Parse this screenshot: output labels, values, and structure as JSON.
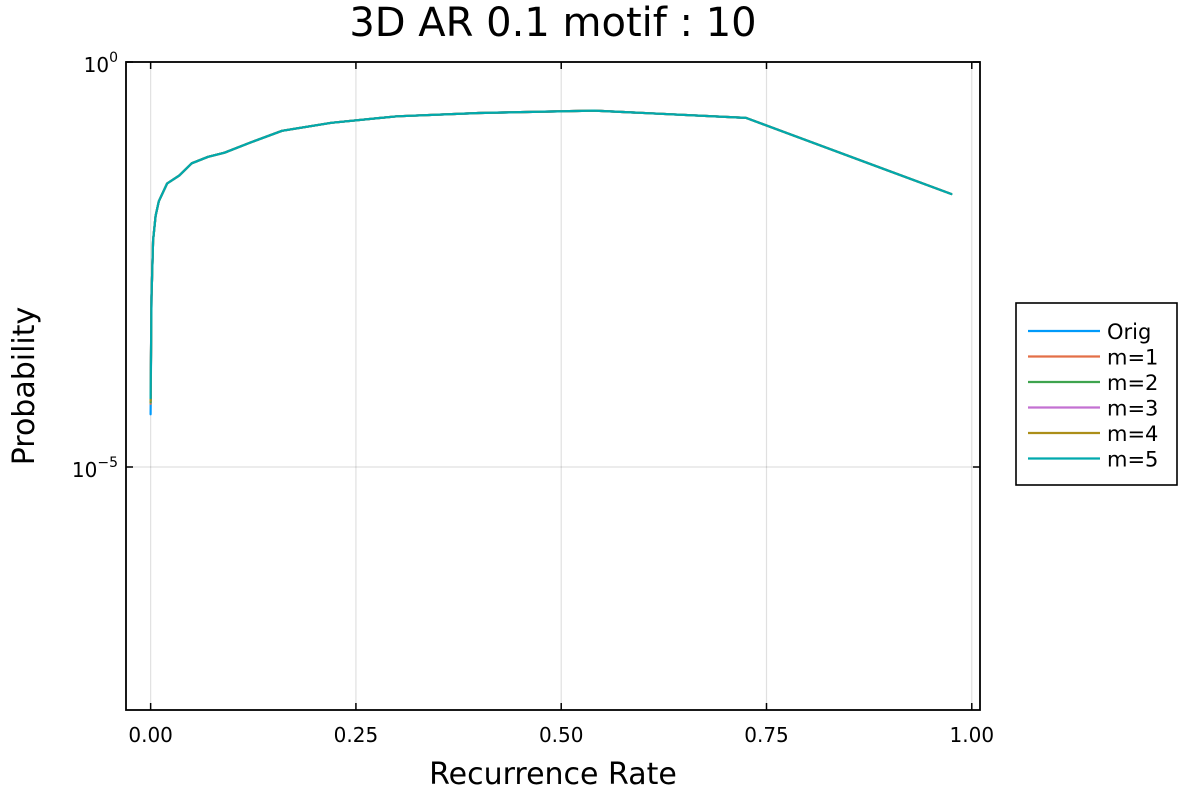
{
  "chart_data": {
    "type": "line",
    "title": "3D AR 0.1 motif : 10",
    "xlabel": "Recurrence Rate",
    "ylabel": "Probability",
    "xlim": [
      -0.03,
      1.01
    ],
    "ylim_log10": [
      -8,
      0
    ],
    "y_scale": "log",
    "grid": true,
    "legend_position": "outer-right",
    "xticks": [
      {
        "value": 0.0,
        "label": "0.00"
      },
      {
        "value": 0.25,
        "label": "0.25"
      },
      {
        "value": 0.5,
        "label": "0.50"
      },
      {
        "value": 0.75,
        "label": "0.75"
      },
      {
        "value": 1.0,
        "label": "1.00"
      }
    ],
    "yticks": [
      {
        "exp": 0,
        "base": "10",
        "sup": "0"
      },
      {
        "exp": -5,
        "base": "10",
        "sup": "−5"
      }
    ],
    "x": [
      0.0,
      0.001,
      0.003,
      0.006,
      0.01,
      0.02,
      0.035,
      0.05,
      0.07,
      0.09,
      0.12,
      0.16,
      0.22,
      0.3,
      0.4,
      0.54,
      0.725,
      0.975
    ],
    "series": [
      {
        "name": "Orig",
        "color": "#009AFA",
        "values": [
          -4.35,
          -2.9,
          -2.2,
          -1.9,
          -1.72,
          -1.5,
          -1.4,
          -1.25,
          -1.17,
          -1.12,
          -1.0,
          -0.85,
          -0.75,
          -0.67,
          -0.63,
          -0.6,
          -0.69,
          -1.63
        ]
      },
      {
        "name": "m=1",
        "color": "#E36F47",
        "values": [
          -4.22,
          -2.9,
          -2.2,
          -1.9,
          -1.72,
          -1.5,
          -1.4,
          -1.25,
          -1.17,
          -1.12,
          -1.0,
          -0.85,
          -0.75,
          -0.67,
          -0.63,
          -0.6,
          -0.69,
          -1.63
        ]
      },
      {
        "name": "m=2",
        "color": "#3EA44E",
        "values": [
          -4.2,
          -2.9,
          -2.2,
          -1.9,
          -1.72,
          -1.5,
          -1.4,
          -1.25,
          -1.17,
          -1.12,
          -1.0,
          -0.85,
          -0.75,
          -0.67,
          -0.63,
          -0.6,
          -0.69,
          -1.63
        ]
      },
      {
        "name": "m=3",
        "color": "#C371D2",
        "values": [
          -4.1,
          -2.9,
          -2.2,
          -1.9,
          -1.72,
          -1.5,
          -1.4,
          -1.25,
          -1.17,
          -1.12,
          -1.0,
          -0.85,
          -0.75,
          -0.67,
          -0.63,
          -0.6,
          -0.69,
          -1.63
        ]
      },
      {
        "name": "m=4",
        "color": "#AC8E18",
        "values": [
          -4.18,
          -2.9,
          -2.2,
          -1.9,
          -1.72,
          -1.5,
          -1.4,
          -1.25,
          -1.17,
          -1.12,
          -1.0,
          -0.85,
          -0.75,
          -0.67,
          -0.63,
          -0.6,
          -0.69,
          -1.63
        ]
      },
      {
        "name": "m=5",
        "color": "#00A9AD",
        "values": [
          -4.15,
          -2.9,
          -2.2,
          -1.9,
          -1.72,
          -1.5,
          -1.4,
          -1.25,
          -1.17,
          -1.12,
          -1.0,
          -0.85,
          -0.75,
          -0.67,
          -0.63,
          -0.6,
          -0.69,
          -1.63
        ]
      }
    ]
  }
}
